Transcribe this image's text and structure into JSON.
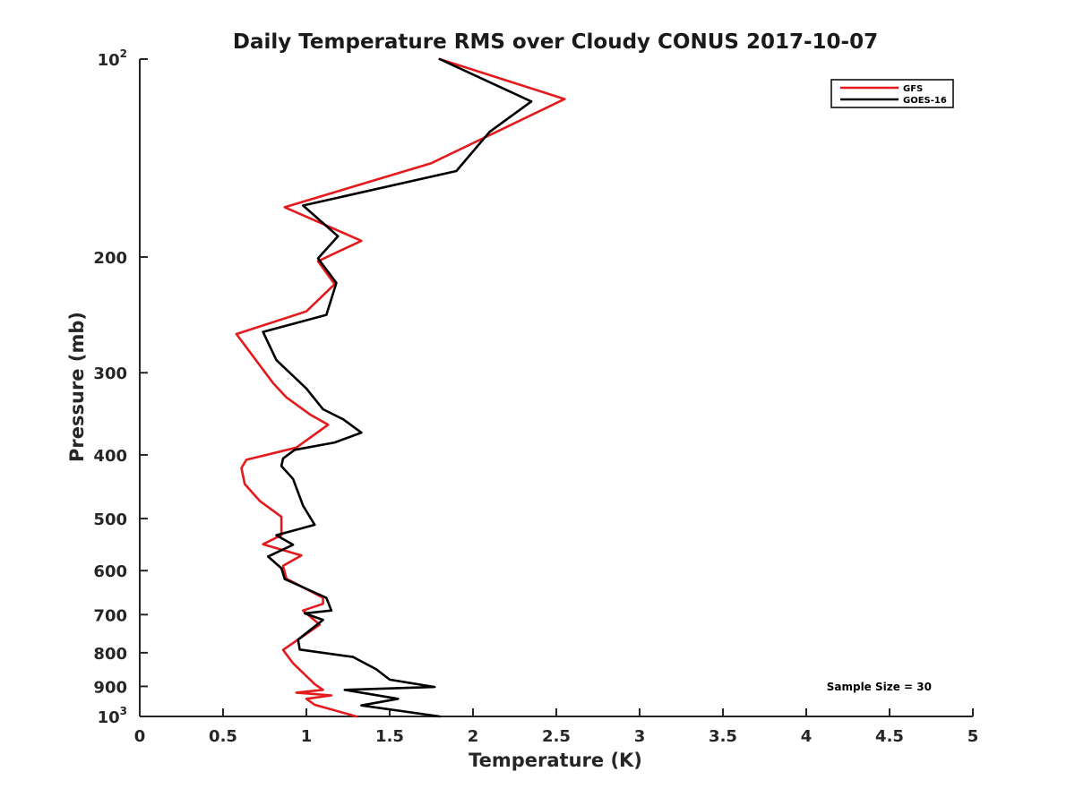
{
  "chart_data": {
    "type": "line",
    "title": "Daily Temperature RMS over Cloudy CONUS 2017-10-07",
    "xlabel": "Temperature (K)",
    "ylabel": "Pressure (mb)",
    "xlim": [
      0,
      5
    ],
    "ylim": [
      100,
      1000
    ],
    "yscale": "log",
    "y_reversed": true,
    "grid": false,
    "legend_position": "top-right",
    "x_ticks": [
      "0",
      "0.5",
      "1",
      "1.5",
      "2",
      "2.5",
      "3",
      "3.5",
      "4",
      "4.5",
      "5"
    ],
    "y_ticks": [
      {
        "value": 100,
        "base": "10",
        "exp": "2"
      },
      {
        "value": 200,
        "label": "200"
      },
      {
        "value": 300,
        "label": "300"
      },
      {
        "value": 400,
        "label": "400"
      },
      {
        "value": 500,
        "label": "500"
      },
      {
        "value": 600,
        "label": "600"
      },
      {
        "value": 700,
        "label": "700"
      },
      {
        "value": 800,
        "label": "800"
      },
      {
        "value": 900,
        "label": "900"
      },
      {
        "value": 1000,
        "base": "10",
        "exp": "3"
      }
    ],
    "annotation": "Sample Size = 30",
    "series": [
      {
        "name": "GFS",
        "color": "#e41a1c",
        "x": [
          1.8,
          2.55,
          1.75,
          0.87,
          1.33,
          1.07,
          1.17,
          1.0,
          0.58,
          0.8,
          0.88,
          1.02,
          1.13,
          0.94,
          0.64,
          0.61,
          0.63,
          0.72,
          0.85,
          0.85,
          0.74,
          0.97,
          0.86,
          0.88,
          1.1,
          1.1,
          0.98,
          1.08,
          0.86,
          0.92,
          1.05,
          1.1,
          0.94,
          1.15,
          1.0,
          1.05,
          1.3
        ],
        "y": [
          100,
          115,
          144,
          168,
          189,
          203,
          220,
          242,
          262,
          311,
          327,
          347,
          360,
          390,
          407,
          419,
          443,
          470,
          497,
          530,
          547,
          569,
          590,
          617,
          660,
          674,
          690,
          725,
          792,
          830,
          893,
          911,
          920,
          929,
          940,
          960,
          1000
        ]
      },
      {
        "name": "GOES-16",
        "color": "#000000",
        "x": [
          1.8,
          2.35,
          2.1,
          1.9,
          0.98,
          1.19,
          1.07,
          1.18,
          1.12,
          0.74,
          0.82,
          1.0,
          1.1,
          1.22,
          1.33,
          1.17,
          0.93,
          0.86,
          0.85,
          0.92,
          0.98,
          1.05,
          0.82,
          0.92,
          0.77,
          0.85,
          0.87,
          1.12,
          1.15,
          0.99,
          1.1,
          0.95,
          0.96,
          1.28,
          1.42,
          1.5,
          1.77,
          1.23,
          1.55,
          1.33,
          1.8
        ],
        "y": [
          100,
          116,
          129,
          148,
          167,
          186,
          201,
          219,
          245,
          260,
          287,
          317,
          341,
          353,
          370,
          383,
          393,
          405,
          416,
          435,
          478,
          511,
          530,
          548,
          571,
          595,
          618,
          660,
          690,
          697,
          713,
          764,
          791,
          812,
          848,
          879,
          902,
          911,
          940,
          962,
          1000
        ]
      }
    ]
  }
}
